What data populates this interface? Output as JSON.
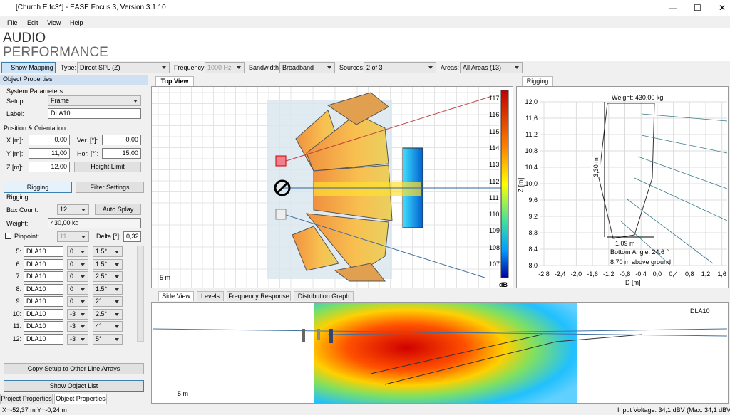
{
  "window": {
    "title": "[Church E.fc3*] - EASE Focus 3, Version 3.1.10"
  },
  "menu": [
    "File",
    "Edit",
    "View",
    "Help"
  ],
  "logo": {
    "line1": "AUDIO",
    "line2": "PERFORMANCE"
  },
  "toolbar": {
    "show_mapping": "Show Mapping",
    "type_label": "Type:",
    "type_value": "Direct SPL (Z)",
    "frequency_label": "Frequency:",
    "frequency_value": "1000 Hz",
    "bandwidth_label": "Bandwidth:",
    "bandwidth_value": "Broadband",
    "sources_label": "Sources:",
    "sources_value": "2 of 3",
    "areas_label": "Areas:",
    "areas_value": "All Areas (13)"
  },
  "object_properties": {
    "header": "Object Properties",
    "system_parameters": "System Parameters",
    "setup_label": "Setup:",
    "setup_value": "Frame",
    "label_label": "Label:",
    "label_value": "DLA10",
    "position_orientation": "Position & Orientation",
    "x_label": "X [m]:",
    "x_value": "0,00",
    "ver_label": "Ver. [°]:",
    "ver_value": "0,00",
    "y_label": "Y [m]:",
    "y_value": "11,00",
    "hor_label": "Hor. [°]:",
    "hor_value": "15,00",
    "z_label": "Z [m]:",
    "z_value": "12,00",
    "height_limit": "Height Limit",
    "rigging_button": "Rigging",
    "filter_settings": "Filter Settings",
    "rigging_section": "Rigging",
    "box_count_label": "Box Count:",
    "box_count_value": "12",
    "auto_splay": "Auto Splay",
    "weight_label": "Weight:",
    "weight_value": "430,00 kg",
    "pinpoint_label": "Pinpoint:",
    "pinpoint_value": "11",
    "delta_label": "Delta [°]:",
    "delta_value": "0,32",
    "rows": [
      [
        "5:",
        "DLA10",
        "0",
        "1.5°"
      ],
      [
        "6:",
        "DLA10",
        "0",
        "1.5°"
      ],
      [
        "7:",
        "DLA10",
        "0",
        "2.5°"
      ],
      [
        "8:",
        "DLA10",
        "0",
        "1.5°"
      ],
      [
        "9:",
        "DLA10",
        "0",
        "2°"
      ],
      [
        "10:",
        "DLA10",
        "-3",
        "2.5°"
      ],
      [
        "11:",
        "DLA10",
        "-3",
        "4°"
      ],
      [
        "12:",
        "DLA10",
        "-3",
        "5°"
      ]
    ],
    "copy_setup": "Copy Setup to Other Line Arrays",
    "show_object_list": "Show Object List",
    "tabs": [
      "Project Properties",
      "Object Properties"
    ]
  },
  "top_view": {
    "tab": "Top View",
    "scale": "5 m",
    "colorbar_labels": [
      "117",
      "116",
      "115",
      "114",
      "113",
      "112",
      "111",
      "110",
      "109",
      "108",
      "107"
    ],
    "colorbar_unit": "dB"
  },
  "rigging": {
    "tab": "Rigging",
    "weight": "Weight: 430,00 kg",
    "z_ticks": [
      "12,0",
      "11,6",
      "11,2",
      "10,8",
      "10,4",
      "10,0",
      "9,6",
      "9,2",
      "8,8",
      "8,4",
      "8,0"
    ],
    "z_axis": "Z [m]",
    "d_ticks": [
      "-2,8",
      "-2,4",
      "-2,0",
      "-1,6",
      "-1,2",
      "-0,8",
      "-0,4",
      "0,0",
      "0,4",
      "0,8",
      "1,2",
      "1,6"
    ],
    "d_axis": "D [m]",
    "height": "3,30 m",
    "depth": "1,09 m",
    "bottom_angle": "Bottom Angle: 24,6 °",
    "above_ground": "8,70 m above ground"
  },
  "bottom": {
    "tabs": [
      "Side View",
      "Levels",
      "Frequency Response",
      "Distribution Graph"
    ],
    "object": "DLA10",
    "scale": "5 m"
  },
  "status": {
    "coords": "X=-52,37 m Y=-0,24 m",
    "voltage": "Input Voltage: 34,1 dBV (Max: 34,1 dBV)"
  }
}
